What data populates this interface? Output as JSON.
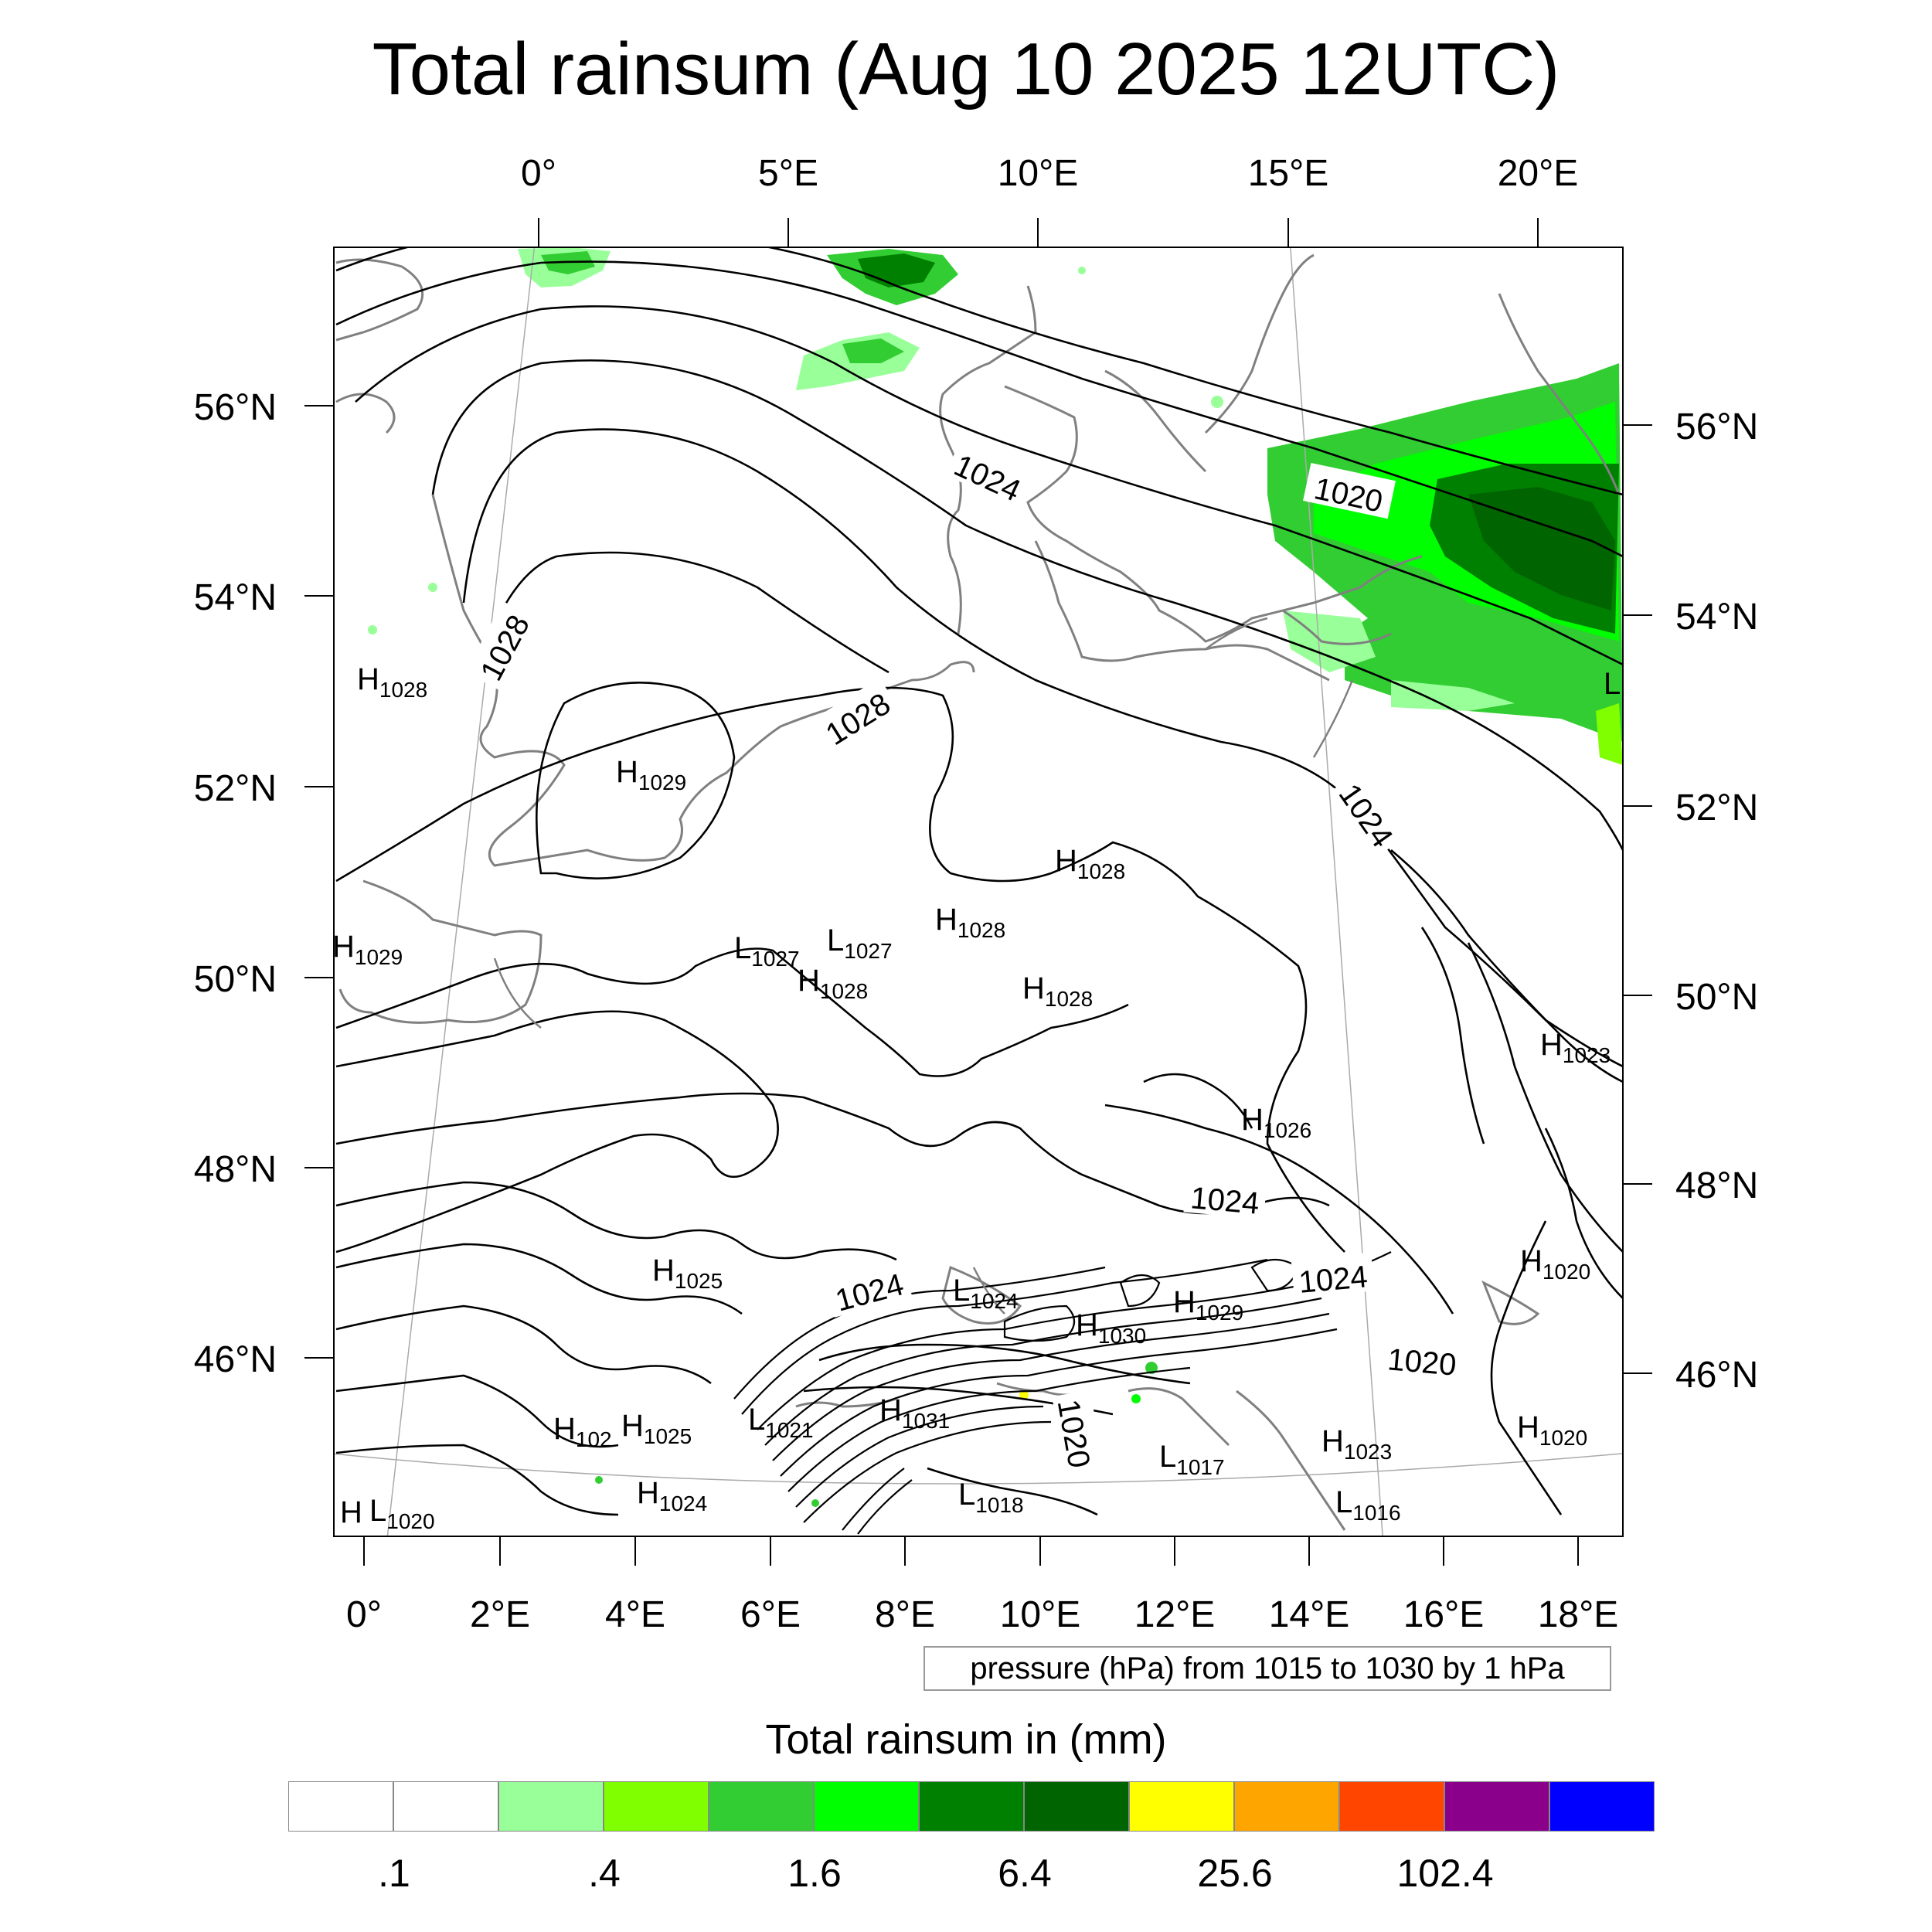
{
  "title": "Total rainsum (Aug 10 2025 12UTC)",
  "top_lon_labels": [
    "0°",
    "5°E",
    "10°E",
    "15°E",
    "20°E"
  ],
  "bottom_lon_labels": [
    "0°",
    "2°E",
    "4°E",
    "6°E",
    "8°E",
    "10°E",
    "12°E",
    "14°E",
    "16°E",
    "18°E"
  ],
  "left_lat_labels": [
    "56°N",
    "54°N",
    "52°N",
    "50°N",
    "48°N",
    "46°N"
  ],
  "right_lat_labels": [
    "56°N",
    "54°N",
    "52°N",
    "50°N",
    "48°N",
    "46°N"
  ],
  "contour_info": "pressure (hPa) from 1015 to 1030 by 1 hPa",
  "colorbar": {
    "title": "Total rainsum in (mm)",
    "colors": [
      "#ffffff",
      "#ffffff",
      "#99ff99",
      "#7fff00",
      "#32cd32",
      "#00ff00",
      "#008000",
      "#006400",
      "#ffff00",
      "#ffa500",
      "#ff4500",
      "#8b008b",
      "#0000ff"
    ],
    "labels": [
      ".1",
      ".4",
      "1.6",
      "6.4",
      "25.6",
      "102.4"
    ]
  },
  "contour_labels": [
    {
      "text": "1024"
    },
    {
      "text": "1020"
    },
    {
      "text": "1028"
    },
    {
      "text": "1028"
    },
    {
      "text": "1024"
    },
    {
      "text": "1024"
    },
    {
      "text": "1024"
    },
    {
      "text": "1024"
    },
    {
      "text": "1020"
    },
    {
      "text": "1020"
    }
  ],
  "pressure_centers": [
    {
      "type": "H",
      "value": "1028"
    },
    {
      "type": "H",
      "value": "1029"
    },
    {
      "type": "H",
      "value": "1029"
    },
    {
      "type": "H",
      "value": "1028"
    },
    {
      "type": "H",
      "value": "1028"
    },
    {
      "type": "L",
      "value": "1027"
    },
    {
      "type": "L",
      "value": "1027"
    },
    {
      "type": "H",
      "value": "1028"
    },
    {
      "type": "H",
      "value": "1028"
    },
    {
      "type": "H",
      "value": "1023"
    },
    {
      "type": "H",
      "value": "1026"
    },
    {
      "type": "H",
      "value": "1025"
    },
    {
      "type": "L",
      "value": "1024"
    },
    {
      "type": "H",
      "value": "1030"
    },
    {
      "type": "H",
      "value": "1029"
    },
    {
      "type": "H",
      "value": "1020"
    },
    {
      "type": "H",
      "value": "102"
    },
    {
      "type": "H",
      "value": "1025"
    },
    {
      "type": "L",
      "value": "1021"
    },
    {
      "type": "H",
      "value": "1031"
    },
    {
      "type": "H",
      "value": "1023"
    },
    {
      "type": "H",
      "value": "1020"
    },
    {
      "type": "H",
      "value": "1024"
    },
    {
      "type": "L",
      "value": "1018"
    },
    {
      "type": "L",
      "value": "1017"
    },
    {
      "type": "L",
      "value": "1016"
    },
    {
      "type": "L",
      "value": "1020"
    },
    {
      "type": "H",
      "value": ""
    },
    {
      "type": "L",
      "value": ""
    }
  ]
}
